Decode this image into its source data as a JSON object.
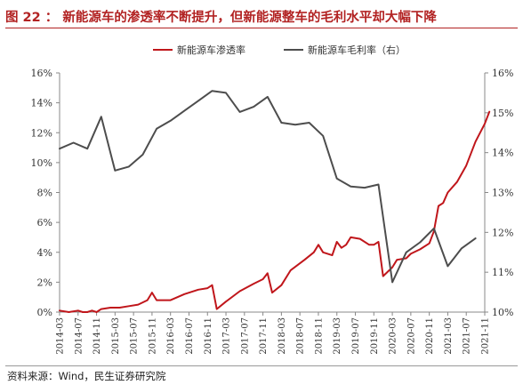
{
  "header": {
    "title": "图 22 ：  新能源车的渗透率不断提升，但新能源整车的毛利水平却大幅下降"
  },
  "footer": {
    "source": "资料来源：Wind，民生证券研究院"
  },
  "colors": {
    "red": "#c0161b",
    "gray": "#4d4d4d",
    "axis": "#888888",
    "title": "#b22222"
  },
  "chart_data": {
    "type": "line",
    "x_ticks": [
      "2014-03",
      "2014-07",
      "2014-11",
      "2015-03",
      "2015-07",
      "2015-11",
      "2016-03",
      "2016-07",
      "2016-11",
      "2017-03",
      "2017-07",
      "2017-11",
      "2018-03",
      "2018-07",
      "2018-11",
      "2019-03",
      "2019-07",
      "2019-11",
      "2020-03",
      "2020-07",
      "2020-11",
      "2021-03",
      "2021-07",
      "2021-11"
    ],
    "y_left": {
      "min": 0,
      "max": 16,
      "step": 2,
      "tick_labels": [
        "0%",
        "2%",
        "4%",
        "6%",
        "8%",
        "10%",
        "12%",
        "14%",
        "16%"
      ]
    },
    "y_right": {
      "min": 10,
      "max": 16,
      "step": 1,
      "tick_labels": [
        "10%",
        "11%",
        "12%",
        "13%",
        "14%",
        "15%",
        "16%"
      ]
    },
    "legend_position": "top-center",
    "grid": false,
    "series": [
      {
        "name": "新能源车渗透率",
        "axis": "left",
        "color": "#c0161b",
        "points": [
          [
            "2014-03",
            0.1
          ],
          [
            "2014-05",
            0.0
          ],
          [
            "2014-07",
            0.1
          ],
          [
            "2014-08",
            0.0
          ],
          [
            "2014-09",
            0.0
          ],
          [
            "2014-10",
            0.1
          ],
          [
            "2014-11",
            0.0
          ],
          [
            "2014-12",
            0.2
          ],
          [
            "2015-02",
            0.3
          ],
          [
            "2015-04",
            0.3
          ],
          [
            "2015-06",
            0.4
          ],
          [
            "2015-08",
            0.5
          ],
          [
            "2015-10",
            0.8
          ],
          [
            "2015-11",
            1.3
          ],
          [
            "2015-12",
            0.8
          ],
          [
            "2016-03",
            0.8
          ],
          [
            "2016-06",
            1.2
          ],
          [
            "2016-09",
            1.5
          ],
          [
            "2016-11",
            1.6
          ],
          [
            "2016-12",
            1.8
          ],
          [
            "2017-01",
            0.2
          ],
          [
            "2017-03",
            0.7
          ],
          [
            "2017-06",
            1.4
          ],
          [
            "2017-09",
            1.9
          ],
          [
            "2017-11",
            2.2
          ],
          [
            "2017-12",
            2.6
          ],
          [
            "2018-01",
            1.3
          ],
          [
            "2018-03",
            1.8
          ],
          [
            "2018-05",
            2.8
          ],
          [
            "2018-08",
            3.5
          ],
          [
            "2018-10",
            4.0
          ],
          [
            "2018-11",
            4.5
          ],
          [
            "2018-12",
            4.0
          ],
          [
            "2019-02",
            3.8
          ],
          [
            "2019-03",
            4.7
          ],
          [
            "2019-04",
            4.3
          ],
          [
            "2019-05",
            4.5
          ],
          [
            "2019-06",
            5.0
          ],
          [
            "2019-08",
            4.9
          ],
          [
            "2019-10",
            4.5
          ],
          [
            "2019-11",
            4.5
          ],
          [
            "2019-12",
            4.7
          ],
          [
            "2020-01",
            2.4
          ],
          [
            "2020-03",
            3.0
          ],
          [
            "2020-04",
            3.5
          ],
          [
            "2020-06",
            3.6
          ],
          [
            "2020-07",
            3.9
          ],
          [
            "2020-09",
            4.2
          ],
          [
            "2020-11",
            4.6
          ],
          [
            "2020-12",
            5.4
          ],
          [
            "2021-01",
            7.1
          ],
          [
            "2021-02",
            7.3
          ],
          [
            "2021-03",
            8.0
          ],
          [
            "2021-05",
            8.7
          ],
          [
            "2021-07",
            9.8
          ],
          [
            "2021-09",
            11.4
          ],
          [
            "2021-11",
            12.6
          ],
          [
            "2021-12",
            13.4
          ]
        ]
      },
      {
        "name": "新能源车毛利率（右）",
        "axis": "right",
        "color": "#4d4d4d",
        "points": [
          [
            "2014-03",
            14.1
          ],
          [
            "2014-06",
            14.25
          ],
          [
            "2014-09",
            14.1
          ],
          [
            "2014-12",
            14.9
          ],
          [
            "2015-03",
            13.55
          ],
          [
            "2015-06",
            13.65
          ],
          [
            "2015-09",
            13.95
          ],
          [
            "2015-12",
            14.6
          ],
          [
            "2016-03",
            14.8
          ],
          [
            "2016-06",
            15.05
          ],
          [
            "2016-09",
            15.3
          ],
          [
            "2016-12",
            15.55
          ],
          [
            "2017-03",
            15.5
          ],
          [
            "2017-06",
            15.02
          ],
          [
            "2017-09",
            15.15
          ],
          [
            "2017-12",
            15.4
          ],
          [
            "2018-03",
            14.75
          ],
          [
            "2018-06",
            14.7
          ],
          [
            "2018-09",
            14.75
          ],
          [
            "2018-12",
            14.42
          ],
          [
            "2019-03",
            13.35
          ],
          [
            "2019-06",
            13.15
          ],
          [
            "2019-09",
            13.12
          ],
          [
            "2019-12",
            13.2
          ],
          [
            "2020-03",
            10.75
          ],
          [
            "2020-06",
            11.5
          ],
          [
            "2020-09",
            11.75
          ],
          [
            "2020-12",
            12.1
          ],
          [
            "2021-03",
            11.15
          ],
          [
            "2021-06",
            11.6
          ],
          [
            "2021-09",
            11.85
          ]
        ]
      }
    ]
  }
}
